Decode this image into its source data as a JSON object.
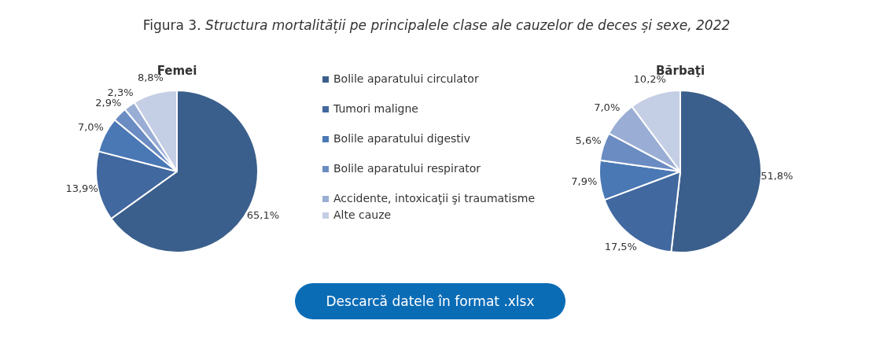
{
  "chart_data": [
    {
      "type": "other",
      "title": "Figura 3. Structura mortalității pe principalele clase ale cauzelor de deces și sexe, 2022",
      "annotations": [
        "Descarcă datele în format .xlsx"
      ]
    },
    {
      "type": "pie",
      "title": "Femei",
      "categories": [
        "Bolile aparatului circulator",
        "Tumori maligne",
        "Bolile aparatului digestiv",
        "Bolile aparatului respirator",
        "Accidente, intoxicaţii şi traumatisme",
        "Alte cauze"
      ],
      "values": [
        65.1,
        13.9,
        7.0,
        2.9,
        2.3,
        8.8
      ],
      "colors": [
        "#3b5f8c",
        "#41689f",
        "#4a78b5",
        "#6b8cc2",
        "#9aaed5",
        "#c4cee4"
      ],
      "value_labels": [
        "65,1%",
        "13,9%",
        "7,0%",
        "2,9%",
        "2,3%",
        "8,8%"
      ],
      "legend": "right"
    },
    {
      "type": "pie",
      "title": "Bărbaţi",
      "categories": [
        null,
        null,
        null,
        null,
        null,
        null
      ],
      "values": [
        51.8,
        17.5,
        7.9,
        5.6,
        7.0,
        10.2
      ],
      "colors": [
        "#3b5f8c",
        "#41689f",
        "#4a78b5",
        "#6b8cc2",
        "#9aaed5",
        "#c4cee4"
      ],
      "value_labels": [
        "51,8%",
        "17,5%",
        "7,9%",
        "5,6%",
        "7,0%",
        "10,2%"
      ]
    }
  ]
}
